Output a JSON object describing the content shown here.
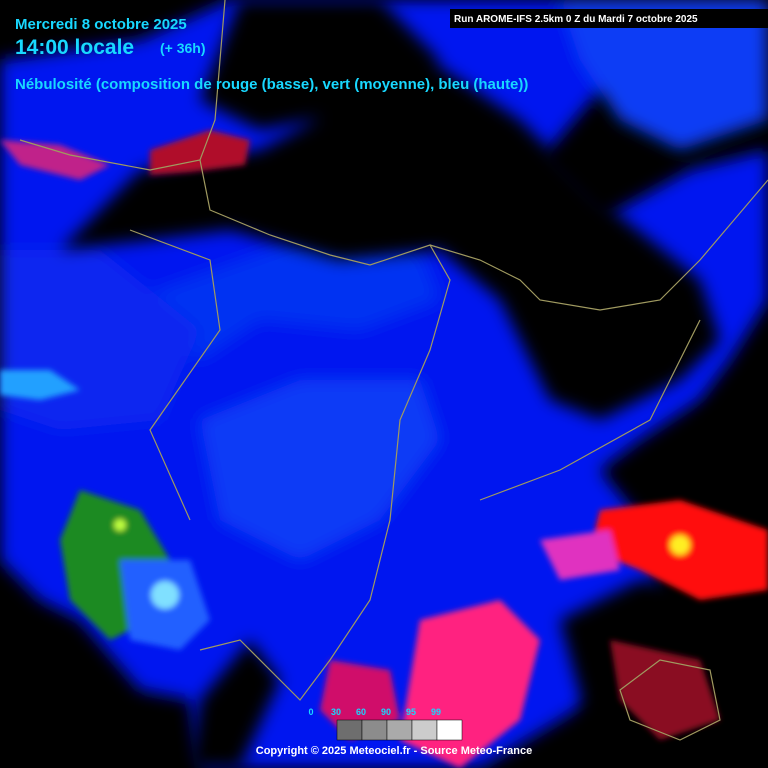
{
  "header": {
    "date": "Mercredi 8 octobre 2025",
    "time": "14:00 locale",
    "offset": "(+ 36h)",
    "subtitle": "Nébulosité (composition de rouge (basse), vert (moyenne), bleu (haute))",
    "run": "Run AROME-IFS 2.5km 0 Z du Mardi 7 octobre 2025"
  },
  "legend": {
    "ticks": [
      0,
      30,
      60,
      90,
      95,
      99
    ]
  },
  "footer": {
    "copyright": "Copyright © 2025 Meteociel.fr - Source Meteo-France"
  }
}
